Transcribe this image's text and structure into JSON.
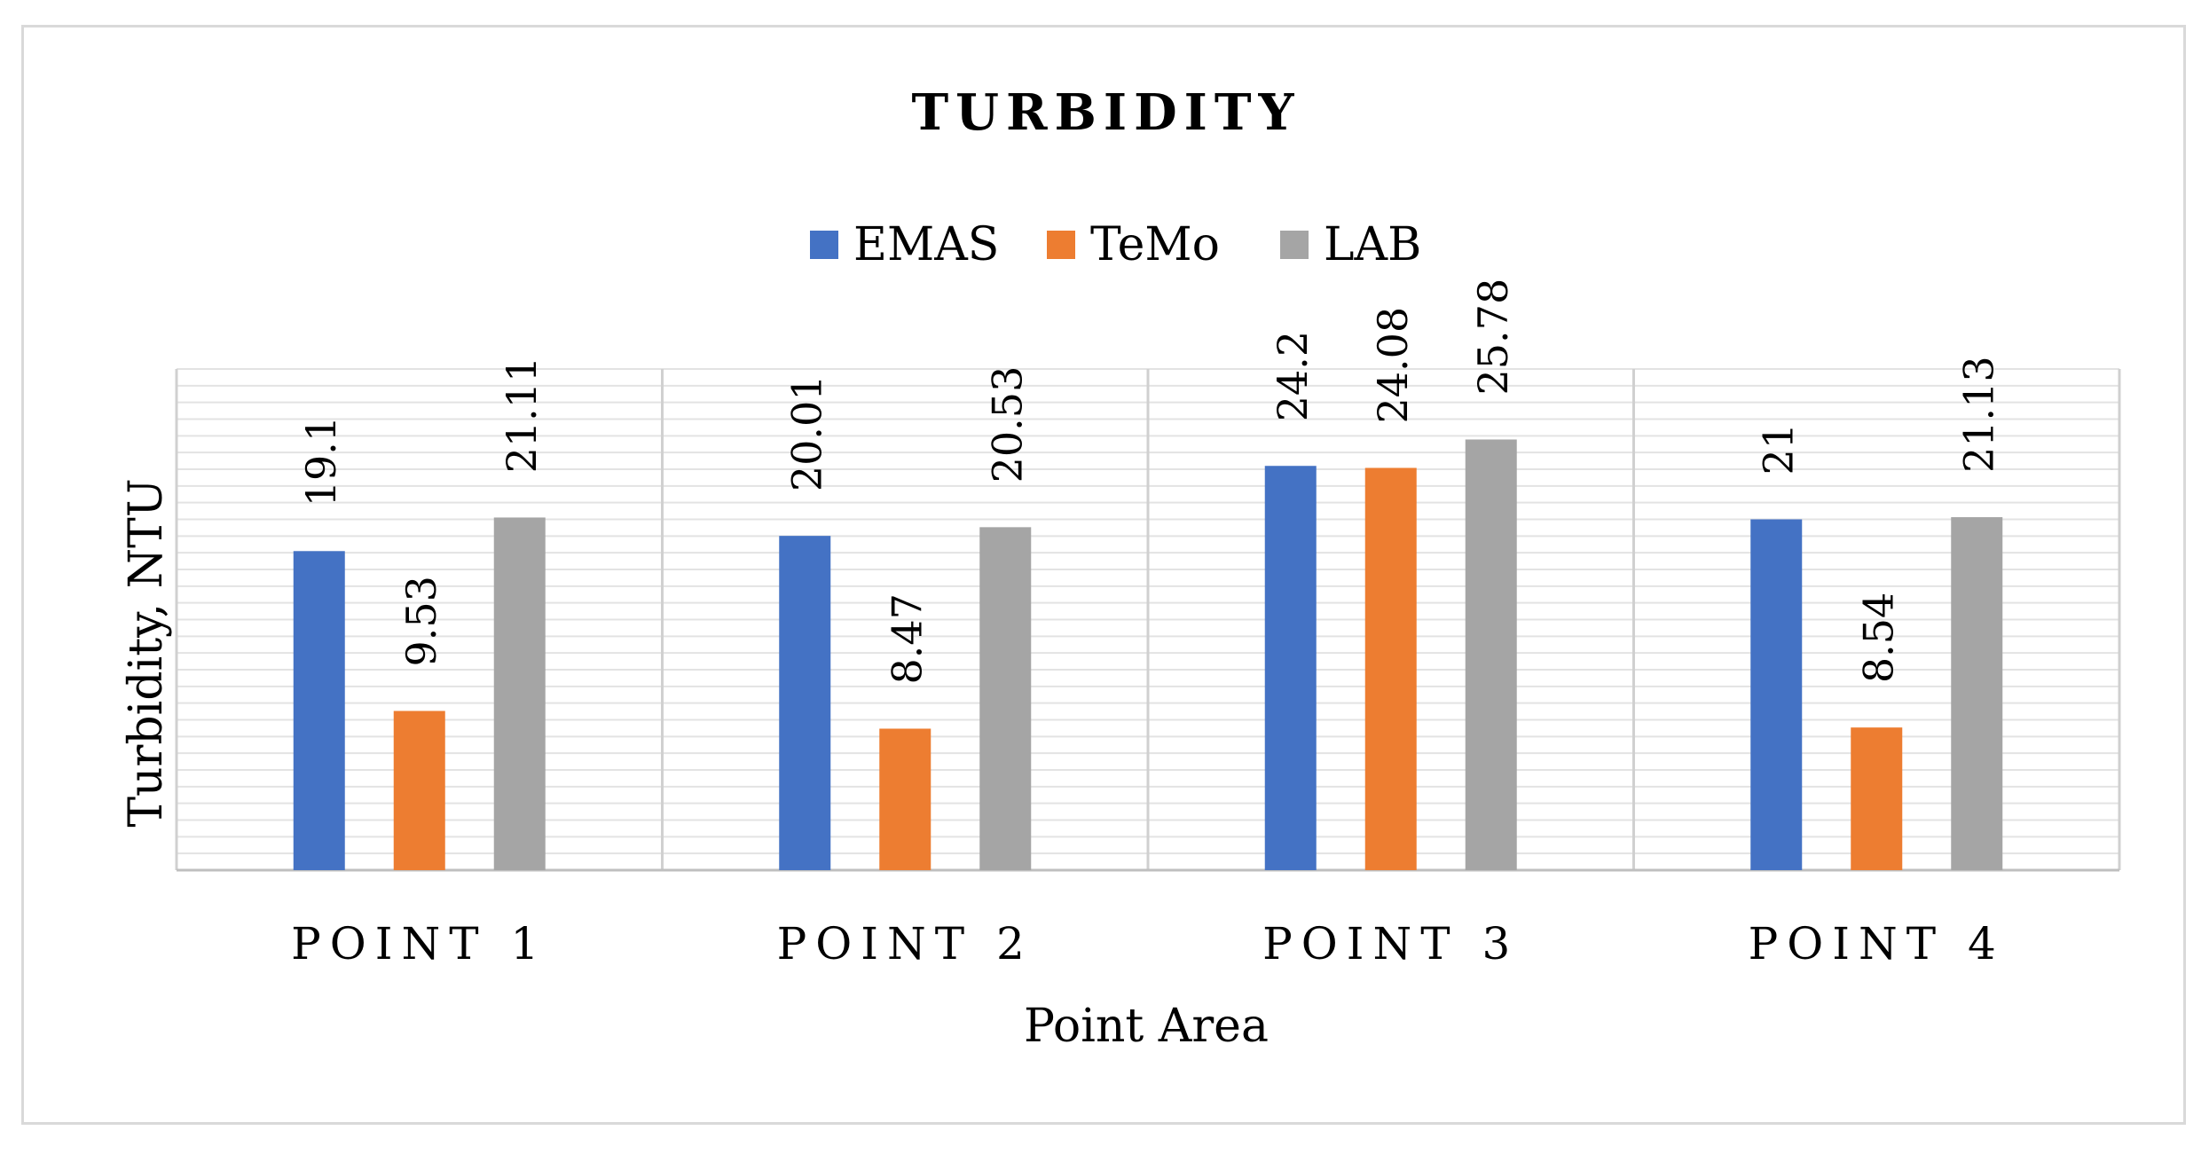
{
  "chart_data": {
    "type": "bar",
    "title": "TURBIDITY",
    "xlabel": "Point Area",
    "ylabel": "Turbidity, NTU",
    "categories": [
      "POINT 1",
      "POINT 2",
      "POINT 3",
      "POINT 4"
    ],
    "series": [
      {
        "name": "EMAS",
        "color": "#4472c4",
        "values": [
          19.1,
          20.01,
          24.2,
          21
        ]
      },
      {
        "name": "TeMo",
        "color": "#ed7d31",
        "values": [
          9.53,
          8.47,
          24.08,
          8.54
        ]
      },
      {
        "name": "LAB",
        "color": "#a5a5a5",
        "values": [
          21.11,
          20.53,
          25.78,
          21.13
        ]
      }
    ],
    "data_labels": [
      [
        "19.1",
        "20.01",
        "24.2",
        "21"
      ],
      [
        "9.53",
        "8.47",
        "24.08",
        "8.54"
      ],
      [
        "21.11",
        "20.53",
        "25.78",
        "21.13"
      ]
    ],
    "ylim": [
      0,
      30
    ],
    "legend_position": "top",
    "grid": true,
    "y_tick_labels_shown": false
  }
}
